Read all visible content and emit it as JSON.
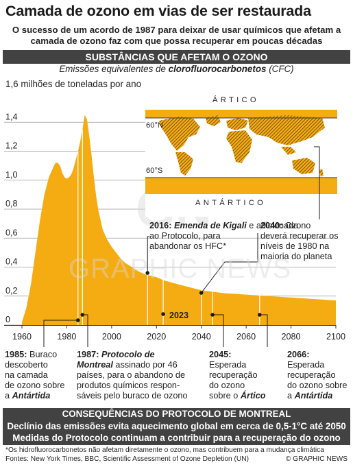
{
  "title": "Camada de ozono em vias de ser restaurada",
  "subtitle": "O sucesso de um acordo de 1987 para deixar de usar químicos que afetam a camada de ozono faz com que possa recuperar em poucas décadas",
  "section": {
    "heading": "SUBSTÂNCIAS QUE AFETAM O OZONO",
    "sub_prefix": "Emissões equivalentes de ",
    "sub_bold": "clorofluorocarbonetos",
    "sub_suffix": " (CFC)"
  },
  "y_axis_label": "1,6 milhões de toneladas por ano",
  "map": {
    "arctic": "ÁRTICO",
    "antarctic": "ANTÁRTICO",
    "lat_north": "60°N",
    "lat_south": "60°S"
  },
  "marker_2023": "2023",
  "annotations": {
    "a2016": {
      "year": "2016:",
      "bold_italic": "Emenda de Kigali",
      "line1_rest": " e adicionada",
      "line2": "ao Protocolo, para",
      "line3": "abandonar os HFC*"
    },
    "a2040": {
      "year": "2040:",
      "line1_rest": " Ozono",
      "line2": "deverá recuperar os",
      "line3": "níveis de 1980 na",
      "line4": "maioria do planeta"
    },
    "a1985": {
      "year": "1985:",
      "line1_rest": " Buraco",
      "line2": "descoberto",
      "line3": "na camada",
      "line4_pre": "de ozono sobre",
      "line5_pre": "a ",
      "line5_bold": "Antártida"
    },
    "a1987": {
      "year": "1987:",
      "bold_italic": "Protocolo de",
      "line2_bold": "Montreal",
      "line2_rest": " assinado por 46",
      "line3": "países, para o abandono de",
      "line4": "produtos químicos respon-",
      "line5": "sáveis pelo buraco de ozono"
    },
    "a2045": {
      "year": "2045:",
      "line2": "Esperada",
      "line3": "recuperação",
      "line4": "do ozono",
      "line5_pre": "sobre o ",
      "line5_bold": "Ártico"
    },
    "a2066": {
      "year": "2066:",
      "line2": "Esperada",
      "line3": "recuperação",
      "line4": "do ozono sobre",
      "line5_pre": "a ",
      "line5_bold": "Antártida"
    }
  },
  "consequences": {
    "heading": "CONSEQUÊNCIAS DO PROTOCOLO DE MONTREAL",
    "line1": "Declínio das emissões evita aquecimento global em cerca de 0,5-1°C até 2050",
    "line2": "Medidas do Protocolo continuam a contribuir para a recuperação do ozono"
  },
  "footnote_1": "*Os hidrofluorocarbonetos não afetam diretamente o ozono, mas contribuem para a mudança climática",
  "footnote_2": "Fontes: New York Times, BBC, Scientific Assessment of Ozone Depletion (UN)",
  "credit": "© GRAPHIC NEWS",
  "watermark": "GRAPHIC NEWS",
  "colors": {
    "area": "#f5ac13",
    "area_edge": "#f7b91f",
    "bar": "#424242",
    "marker_line": "#ffffff"
  },
  "chart_data": {
    "type": "area",
    "title": "SUBSTÂNCIAS QUE AFETAM O OZONO",
    "ylabel": "1,6 milhões de toneladas por ano",
    "xlim": [
      1960,
      2100
    ],
    "ylim": [
      0,
      1.6
    ],
    "x_ticks": [
      1960,
      1980,
      2000,
      2020,
      2040,
      2060,
      2080,
      2100
    ],
    "x_tick_labels": [
      "1960",
      "1980",
      "2000",
      "2020",
      "2040",
      "2060",
      "2080",
      "2100"
    ],
    "y_ticks": [
      0,
      0.2,
      0.4,
      0.6,
      0.8,
      1.0,
      1.2,
      1.4
    ],
    "y_tick_labels": [
      "0",
      "0,2",
      "0,4",
      "0,6",
      "0,8",
      "1,0",
      "1,2",
      "1,4"
    ],
    "grid": true,
    "series": [
      {
        "x": [
          1960,
          1962,
          1964,
          1966,
          1968,
          1970,
          1972,
          1974,
          1975,
          1976,
          1977,
          1978,
          1979,
          1980,
          1981,
          1982,
          1983,
          1984,
          1985,
          1986,
          1987,
          1988,
          1989,
          1990,
          1991,
          1992,
          1993,
          1994,
          1995,
          1996,
          1998,
          2000,
          2002,
          2004,
          2006,
          2008,
          2010,
          2012,
          2015,
          2020,
          2023,
          2030,
          2040,
          2050,
          2060,
          2070,
          2080,
          2090,
          2100
        ],
        "y": [
          0.02,
          0.12,
          0.28,
          0.5,
          0.72,
          0.9,
          1.02,
          1.09,
          1.12,
          1.12,
          1.1,
          1.05,
          1.02,
          1.01,
          1.02,
          1.04,
          1.08,
          1.14,
          1.2,
          1.27,
          1.35,
          1.45,
          1.42,
          1.31,
          1.18,
          1.03,
          0.9,
          0.8,
          0.73,
          0.66,
          0.59,
          0.54,
          0.5,
          0.46,
          0.43,
          0.41,
          0.39,
          0.37,
          0.35,
          0.33,
          0.31,
          0.28,
          0.24,
          0.22,
          0.21,
          0.2,
          0.19,
          0.18,
          0.17
        ]
      }
    ],
    "markers": [
      1985,
      1987,
      2016,
      2023,
      2040,
      2045,
      2066
    ]
  }
}
